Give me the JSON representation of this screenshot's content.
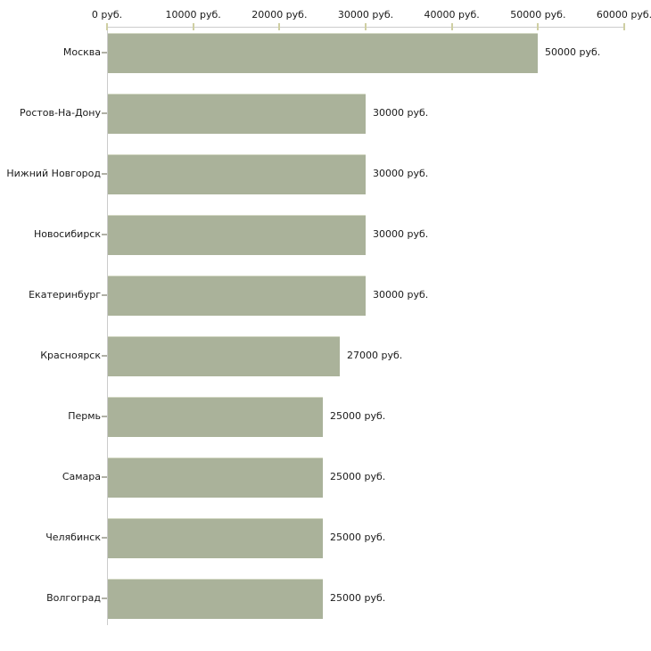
{
  "chart_data": {
    "type": "bar",
    "orientation": "horizontal",
    "categories": [
      "Москва",
      "Ростов-На-Дону",
      "Нижний Новгород",
      "Новосибирск",
      "Екатеринбург",
      "Красноярск",
      "Пермь",
      "Самара",
      "Челябинск",
      "Волгоград"
    ],
    "values": [
      50000,
      30000,
      30000,
      30000,
      30000,
      27000,
      25000,
      25000,
      25000,
      25000
    ],
    "value_labels": [
      "50000 руб.",
      "30000 руб.",
      "30000 руб.",
      "30000 руб.",
      "30000 руб.",
      "27000 руб.",
      "25000 руб.",
      "25000 руб.",
      "25000 руб.",
      "25000 руб."
    ],
    "x_tick_labels": [
      "0 руб.",
      "10000 руб.",
      "20000 руб.",
      "30000 руб.",
      "40000 руб.",
      "50000 руб.",
      "60000 руб."
    ],
    "x_tick_values": [
      0,
      10000,
      20000,
      30000,
      40000,
      50000,
      60000
    ],
    "xlim": [
      0,
      60000
    ],
    "xlabel": "",
    "ylabel": "",
    "title": "",
    "grid": false,
    "legend": false,
    "axis_position": "top"
  },
  "colors": {
    "bar_fill": "#aab29a",
    "bar_edge_top": "#d3d8c4",
    "axis_line": "#cccccc",
    "x_tick": "#cfcfa3",
    "category_tick": "#b0b0a6",
    "text": "#1a1a1a",
    "background": "#ffffff"
  }
}
